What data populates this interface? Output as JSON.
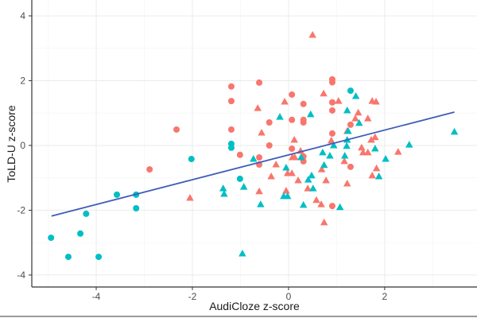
{
  "chart_data": {
    "type": "scatter",
    "title": "",
    "xlabel": "AudiCloze z-score",
    "ylabel": "ToLD-U z-score",
    "xlim": [
      -5.34,
      3.92
    ],
    "ylim": [
      -4.37,
      4.49
    ],
    "xticks": [
      -4,
      -2,
      0,
      2
    ],
    "yticks": [
      -4,
      -2,
      0,
      2,
      4
    ],
    "grid": true,
    "legend": "none",
    "colors": {
      "red": "#F8766D",
      "teal": "#00BFC4",
      "line": "#3F5DB8",
      "axis": "#333333",
      "grid": "#EBEBEB"
    },
    "series": [
      {
        "color": "teal",
        "shape": "circle",
        "points": [
          [
            -4.94,
            -2.85
          ],
          [
            -4.58,
            -3.44
          ],
          [
            -3.95,
            -3.44
          ],
          [
            -4.33,
            -2.72
          ],
          [
            -4.21,
            -2.11
          ],
          [
            -3.57,
            -1.52
          ],
          [
            -3.17,
            -1.52
          ],
          [
            -3.17,
            -1.94
          ],
          [
            -2.02,
            -0.42
          ],
          [
            -1.19,
            0.05
          ],
          [
            -1.19,
            -0.07
          ],
          [
            -1.01,
            -1.03
          ],
          [
            1.29,
            1.69
          ]
        ]
      },
      {
        "color": "red",
        "shape": "circle",
        "points": [
          [
            -2.33,
            0.49
          ],
          [
            -2.89,
            -0.74
          ],
          [
            -1.19,
            0.49
          ],
          [
            -1.01,
            -0.29
          ],
          [
            -1.19,
            1.82
          ],
          [
            -0.61,
            1.94
          ],
          [
            -1.19,
            1.37
          ],
          [
            0.07,
            1.57
          ],
          [
            0.31,
            1.28
          ],
          [
            0.91,
            2.04
          ],
          [
            0.91,
            1.95
          ],
          [
            0.91,
            1.33
          ],
          [
            0.91,
            1.08
          ],
          [
            -0.4,
            0.71
          ],
          [
            0.07,
            0.79
          ],
          [
            0.31,
            0.79
          ],
          [
            0.31,
            0.71
          ],
          [
            -0.4,
            0.0
          ],
          [
            0.91,
            0.37
          ],
          [
            1.29,
            0.64
          ],
          [
            -0.61,
            -0.37
          ],
          [
            -0.61,
            -0.59
          ],
          [
            0.07,
            -0.1
          ],
          [
            0.31,
            -0.34
          ],
          [
            0.31,
            -0.49
          ],
          [
            1.29,
            -0.66
          ],
          [
            0.91,
            -1.87
          ]
        ]
      },
      {
        "color": "red",
        "shape": "triangle",
        "points": [
          [
            -2.05,
            -1.62
          ],
          [
            0.5,
            3.41
          ],
          [
            0.73,
            1.6
          ],
          [
            -0.08,
            1.35
          ],
          [
            -0.64,
            1.15
          ],
          [
            1.04,
            1.37
          ],
          [
            1.74,
            1.37
          ],
          [
            1.82,
            1.35
          ],
          [
            1.45,
            1.01
          ],
          [
            1.65,
            0.83
          ],
          [
            1.39,
            0.83
          ],
          [
            -0.56,
            0.39
          ],
          [
            0.12,
            0.17
          ],
          [
            1.22,
            0.44
          ],
          [
            0.89,
            0.15
          ],
          [
            1.72,
            0.17
          ],
          [
            1.8,
            0.25
          ],
          [
            1.52,
            -0.07
          ],
          [
            1.65,
            -0.22
          ],
          [
            1.55,
            -0.22
          ],
          [
            2.28,
            -0.2
          ],
          [
            -0.26,
            -0.59
          ],
          [
            -0.36,
            -0.96
          ],
          [
            -0.61,
            -1.42
          ],
          [
            -0.05,
            -1.4
          ],
          [
            -0.02,
            -0.86
          ],
          [
            0.07,
            -0.86
          ],
          [
            0.13,
            -0.37
          ],
          [
            0.08,
            -0.37
          ],
          [
            0.25,
            -0.17
          ],
          [
            0.2,
            -1.08
          ],
          [
            0.4,
            -1.33
          ],
          [
            0.58,
            -1.69
          ],
          [
            0.68,
            -1.82
          ],
          [
            0.69,
            -0.74
          ],
          [
            0.78,
            -1.08
          ],
          [
            0.74,
            -2.38
          ],
          [
            1.16,
            -0.49
          ],
          [
            1.22,
            -1.18
          ],
          [
            1.74,
            -0.93
          ],
          [
            1.83,
            -0.71
          ]
        ]
      },
      {
        "color": "teal",
        "shape": "triangle",
        "points": [
          [
            -1.36,
            -1.33
          ],
          [
            -1.34,
            -1.5
          ],
          [
            -0.93,
            -1.28
          ],
          [
            -0.96,
            -3.34
          ],
          [
            -0.73,
            -0.42
          ],
          [
            1.4,
            1.52
          ],
          [
            -0.18,
            0.88
          ],
          [
            0.46,
            0.96
          ],
          [
            1.22,
            1.08
          ],
          [
            1.47,
            0.69
          ],
          [
            1.24,
            0.44
          ],
          [
            1.22,
            0.17
          ],
          [
            1.21,
            -0.02
          ],
          [
            0.94,
            0.0
          ],
          [
            1.8,
            -0.1
          ],
          [
            2.51,
            0.02
          ],
          [
            3.45,
            0.42
          ],
          [
            0.71,
            -0.22
          ],
          [
            0.86,
            -0.32
          ],
          [
            1.17,
            -0.32
          ],
          [
            -0.58,
            -1.82
          ],
          [
            -0.05,
            -0.69
          ],
          [
            -0.1,
            -1.57
          ],
          [
            -0.02,
            -1.57
          ],
          [
            0.26,
            -0.37
          ],
          [
            0.41,
            -1.06
          ],
          [
            0.48,
            -0.93
          ],
          [
            0.51,
            -1.33
          ],
          [
            0.31,
            -1.84
          ],
          [
            0.74,
            -0.61
          ],
          [
            1.07,
            -1.91
          ],
          [
            2.02,
            -0.42
          ],
          [
            1.88,
            -0.96
          ]
        ]
      }
    ],
    "regression_line": {
      "x": [
        -4.93,
        3.45
      ],
      "y": [
        -2.18,
        1.03
      ]
    }
  }
}
